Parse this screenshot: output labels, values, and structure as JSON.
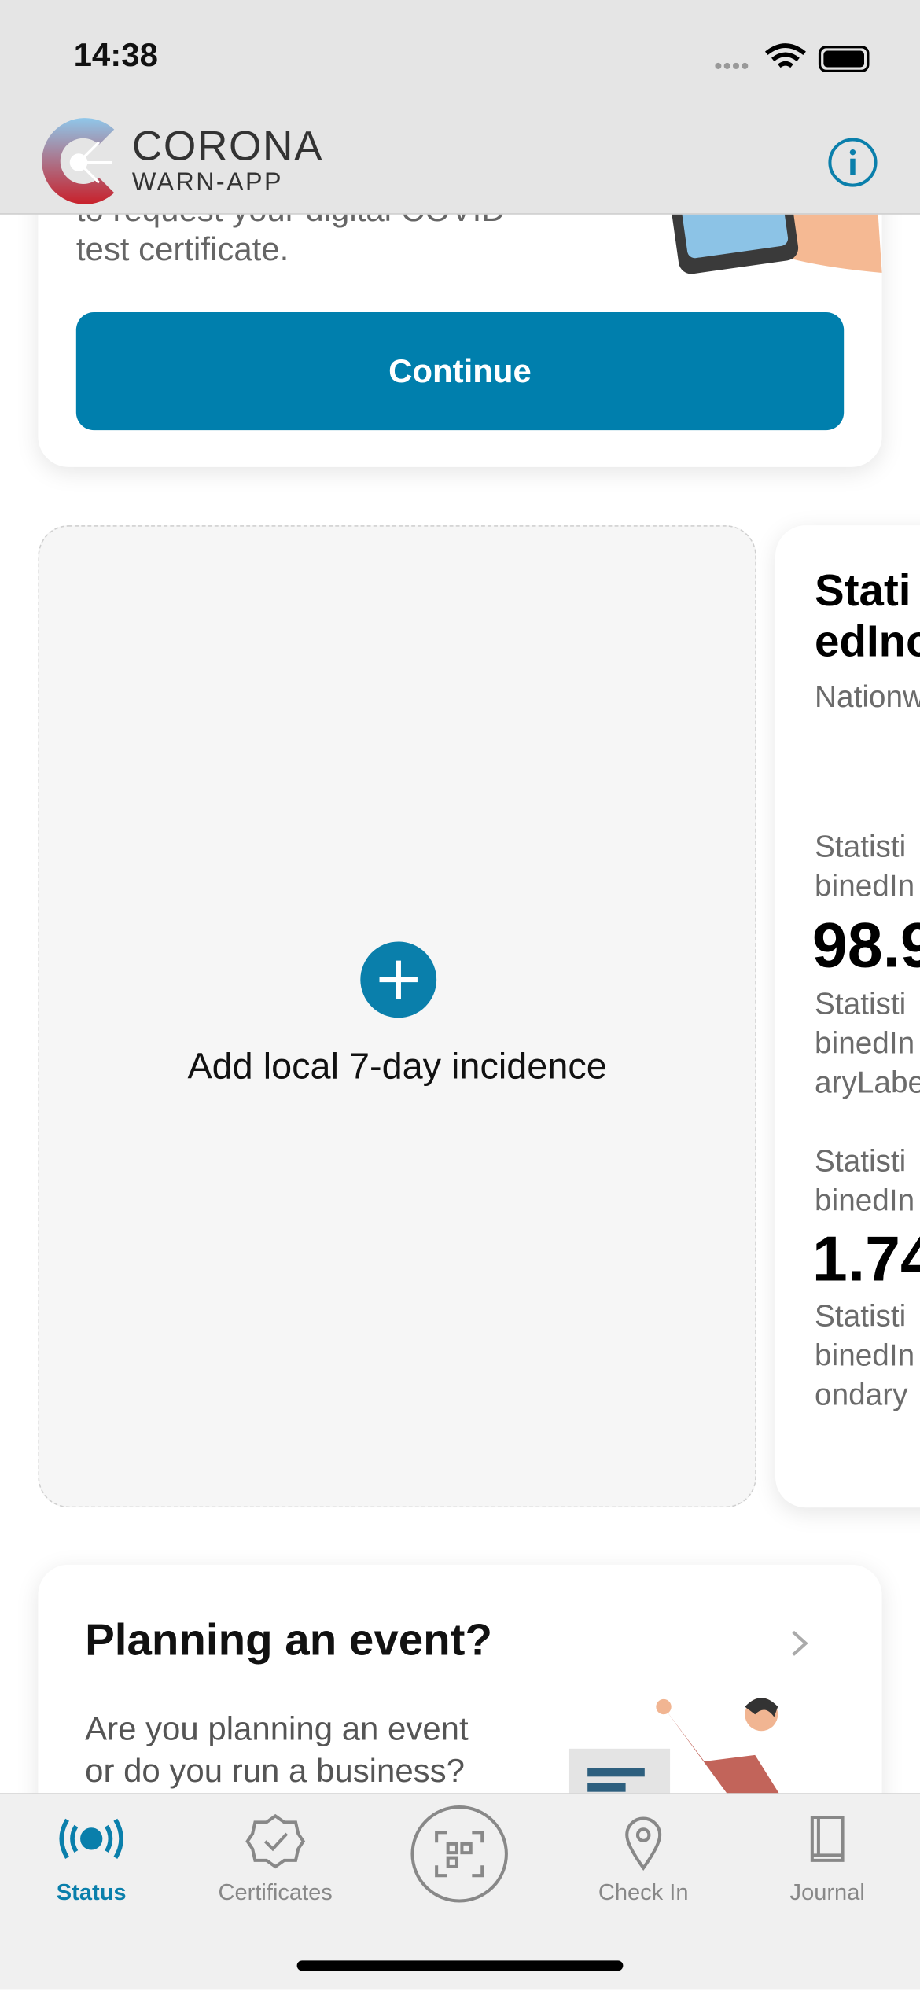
{
  "status_bar": {
    "time": "14:38"
  },
  "header": {
    "logo_title": "CORONA",
    "logo_subtitle": "WARN-APP"
  },
  "test_card": {
    "text_lines": [
      "to request your digital COVID",
      "test certificate."
    ],
    "button": "Continue"
  },
  "incidence_card": {
    "label": "Add local 7-day incidence"
  },
  "statistics_card": {
    "title_lines": [
      "Stati",
      "edInc"
    ],
    "subtitle": "Nationw",
    "items": [
      {
        "lines": [
          "Statisti",
          "binedIn"
        ],
        "value": "98.9",
        "sub_lines": [
          "Statisti",
          "binedIn",
          "aryLabe"
        ]
      },
      {
        "lines": [
          "Statisti",
          "binedIn"
        ],
        "value": "1.74",
        "sub_lines": [
          "Statisti",
          "binedIn",
          "ondary"
        ]
      }
    ]
  },
  "event_card": {
    "title": "Planning an event?",
    "text_lines": [
      "Are you planning an event",
      "or do you run a business?"
    ]
  },
  "tab_bar": {
    "tabs": [
      "Status",
      "Certificates",
      "Check In",
      "Journal"
    ]
  }
}
